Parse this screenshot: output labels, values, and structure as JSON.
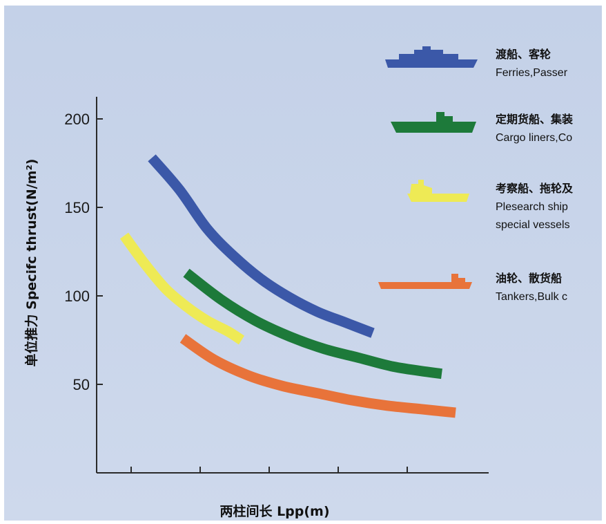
{
  "chart_data": {
    "type": "line",
    "xlabel": "两柱间长 Lpp(m)",
    "ylabel": "单位推力 Specifc thrust(N/m²)",
    "ylim": [
      0,
      205
    ],
    "xlim": [
      0,
      7
    ],
    "y_ticks": [
      50,
      100,
      150,
      200
    ],
    "x_ticks": [
      0.5,
      1.5,
      2.5,
      3.5,
      4.5
    ],
    "grid": false,
    "legend_position": "right",
    "series": [
      {
        "cn": "渡船、客轮",
        "en": "Ferries,Passer",
        "color": "#3b58a8",
        "x": [
          0.8,
          1.2,
          1.6,
          2.0,
          2.4,
          2.8,
          3.2,
          3.6,
          4.0
        ],
        "values": [
          178,
          160,
          138,
          122,
          109,
          99,
          91,
          85,
          79
        ]
      },
      {
        "cn": "定期货船、集装",
        "en": "Cargo liners,Co",
        "color": "#1d7a3a",
        "x": [
          1.3,
          1.8,
          2.3,
          2.8,
          3.3,
          3.8,
          4.3,
          4.8,
          5.0
        ],
        "values": [
          113,
          98,
          86,
          77,
          70,
          65,
          60,
          57,
          56
        ]
      },
      {
        "cn": "考察船、拖轮及",
        "en": "Plesearch ship",
        "en2": "special vessels",
        "color": "#eeea55",
        "x": [
          0.4,
          0.7,
          1.0,
          1.3,
          1.6,
          1.9,
          2.1
        ],
        "values": [
          134,
          118,
          104,
          94,
          86,
          80,
          75
        ]
      },
      {
        "cn": "油轮、散货船",
        "en": "Tankers,Bulk c",
        "color": "#e8733a",
        "x": [
          1.25,
          1.7,
          2.2,
          2.7,
          3.2,
          3.7,
          4.2,
          4.7,
          5.2
        ],
        "values": [
          76,
          64,
          55,
          49,
          45,
          41,
          38,
          36,
          34
        ]
      }
    ]
  }
}
